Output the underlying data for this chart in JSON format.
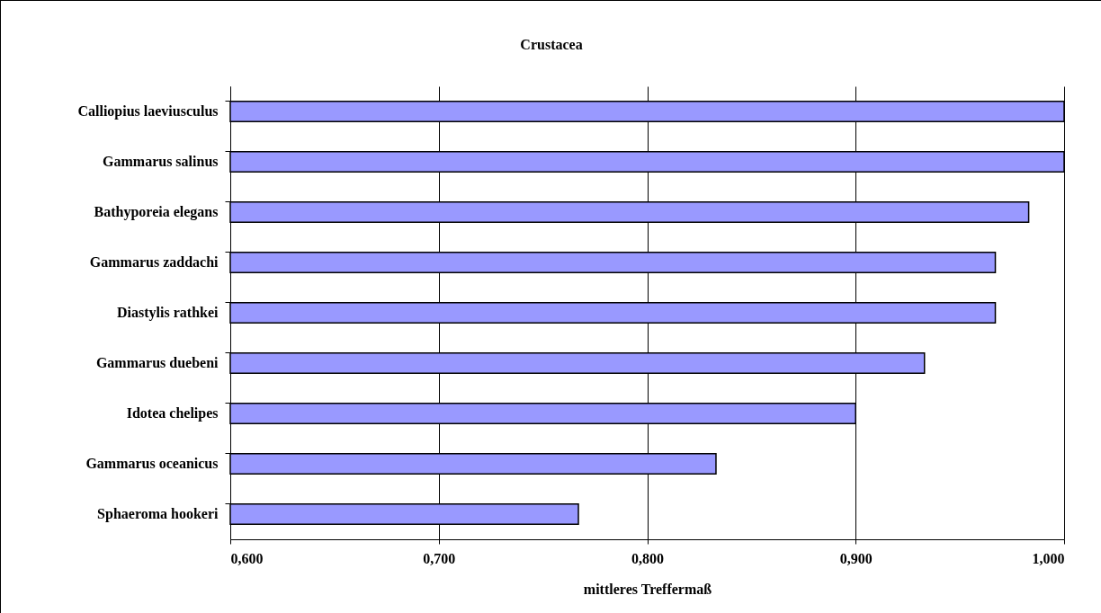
{
  "chart_data": {
    "type": "bar",
    "orientation": "horizontal",
    "title": "Crustacea",
    "xlabel": "mittleres Treffermaß",
    "categories": [
      "Calliopius laeviusculus",
      "Gammarus salinus",
      "Bathyporeia elegans",
      "Gammarus zaddachi",
      "Diastylis rathkei",
      "Gammarus duebeni",
      "Idotea chelipes",
      "Gammarus oceanicus",
      "Sphaeroma hookeri"
    ],
    "values": [
      1.0,
      1.0,
      0.983,
      0.967,
      0.967,
      0.933,
      0.9,
      0.833,
      0.767
    ],
    "color": "#9999ff",
    "xlim": [
      0.6,
      1.0
    ],
    "xticks": [
      {
        "value": 0.6,
        "label": "0,600"
      },
      {
        "value": 0.7,
        "label": "0,700"
      },
      {
        "value": 0.8,
        "label": "0,800"
      },
      {
        "value": 0.9,
        "label": "0,900"
      },
      {
        "value": 1.0,
        "label": "1,000"
      }
    ],
    "grid": "x"
  }
}
